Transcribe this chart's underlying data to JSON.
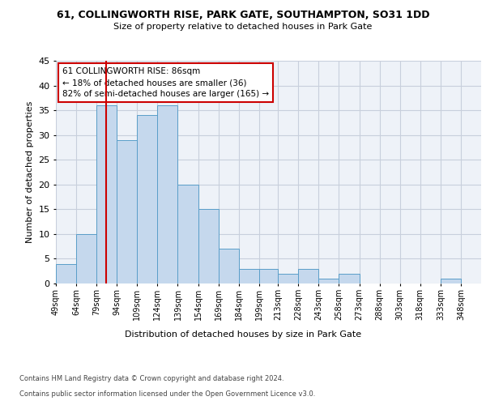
{
  "title1": "61, COLLINGWORTH RISE, PARK GATE, SOUTHAMPTON, SO31 1DD",
  "title2": "Size of property relative to detached houses in Park Gate",
  "xlabel": "Distribution of detached houses by size in Park Gate",
  "ylabel": "Number of detached properties",
  "bar_edges": [
    49,
    64,
    79,
    94,
    109,
    124,
    139,
    154,
    169,
    184,
    199,
    213,
    228,
    243,
    258,
    273,
    288,
    303,
    318,
    333,
    348
  ],
  "bar_heights": [
    4,
    10,
    36,
    29,
    34,
    36,
    20,
    15,
    7,
    3,
    3,
    2,
    3,
    1,
    2,
    0,
    0,
    0,
    0,
    1
  ],
  "bar_color": "#c5d8ed",
  "bar_edge_color": "#5a9ec9",
  "property_line_x": 86,
  "ylim": [
    0,
    45
  ],
  "yticks": [
    0,
    5,
    10,
    15,
    20,
    25,
    30,
    35,
    40,
    45
  ],
  "annotation_text": "61 COLLINGWORTH RISE: 86sqm\n← 18% of detached houses are smaller (36)\n82% of semi-detached houses are larger (165) →",
  "annotation_box_color": "#ffffff",
  "annotation_box_edge": "#cc0000",
  "footnote1": "Contains HM Land Registry data © Crown copyright and database right 2024.",
  "footnote2": "Contains public sector information licensed under the Open Government Licence v3.0.",
  "bg_color": "#eef2f8",
  "grid_color": "#c8cfdc",
  "tick_labels": [
    "49sqm",
    "64sqm",
    "79sqm",
    "94sqm",
    "109sqm",
    "124sqm",
    "139sqm",
    "154sqm",
    "169sqm",
    "184sqm",
    "199sqm",
    "213sqm",
    "228sqm",
    "243sqm",
    "258sqm",
    "273sqm",
    "288sqm",
    "303sqm",
    "318sqm",
    "333sqm",
    "348sqm"
  ]
}
